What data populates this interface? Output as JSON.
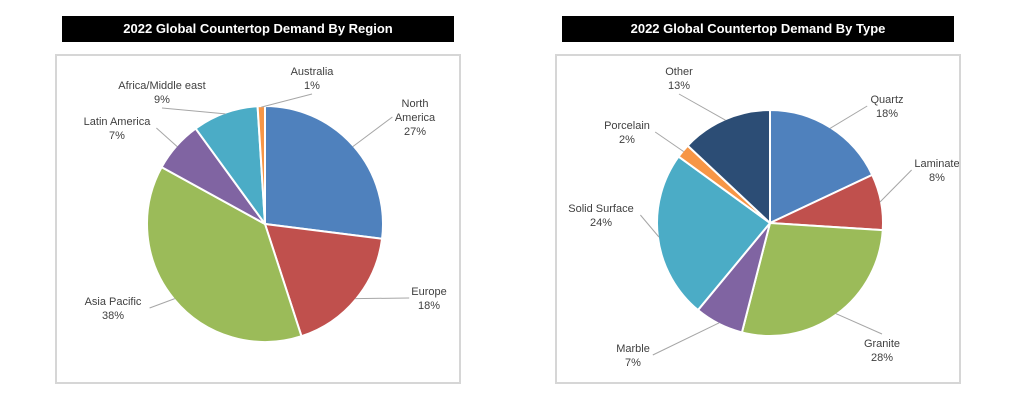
{
  "chart_data": [
    {
      "type": "pie",
      "title": "2022 Global Countertop Demand By Region",
      "labels": [
        "North America",
        "Europe",
        "Asia Pacific",
        "Latin America",
        "Africa/Middle east",
        "Australia"
      ],
      "values": [
        27,
        18,
        38,
        7,
        9,
        1
      ],
      "unit": "%",
      "colors": [
        "#4F81BD",
        "#C0504D",
        "#9BBB59",
        "#8064A2",
        "#4BACC6",
        "#F79646"
      ],
      "start_angle_deg": 0,
      "direction": "clockwise",
      "legend": "none",
      "data_labels": "outside, category name + percent, gray leader lines",
      "title_bar": {
        "background": "#000000",
        "text_color": "#FFFFFF"
      }
    },
    {
      "type": "pie",
      "title": "2022 Global Countertop Demand By Type",
      "labels": [
        "Quartz",
        "Laminate",
        "Granite",
        "Marble",
        "Solid Surface",
        "Porcelain",
        "Other"
      ],
      "values": [
        18,
        8,
        28,
        7,
        24,
        2,
        13
      ],
      "unit": "%",
      "colors": [
        "#4F81BD",
        "#C0504D",
        "#9BBB59",
        "#8064A2",
        "#4BACC6",
        "#F79646",
        "#2C4D75"
      ],
      "start_angle_deg": 0,
      "direction": "clockwise",
      "legend": "none",
      "data_labels": "outside, category name + percent, gray leader lines",
      "title_bar": {
        "background": "#000000",
        "text_color": "#FFFFFF"
      }
    }
  ],
  "style": {
    "slice_outline": "#FFFFFF",
    "leader_line_color": "#A6A6A6",
    "label_text_color": "#3F3F3F",
    "plot_border_color": "#D6D6D6"
  }
}
